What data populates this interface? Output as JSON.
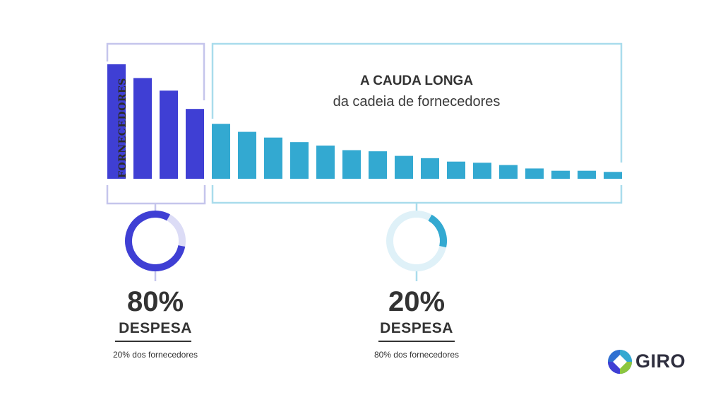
{
  "chart_data": {
    "type": "bar",
    "ylabel": "FORNECEDORES",
    "values": [
      100,
      88,
      77,
      61,
      48,
      41,
      36,
      32,
      29,
      25,
      24,
      20,
      18,
      15,
      14,
      12,
      9,
      7,
      7,
      6
    ],
    "head_count": 4,
    "colors": {
      "head": "#3f3fd4",
      "tail": "#33a9d1"
    }
  },
  "callout": {
    "title": "A CAUDA LONGA",
    "subtitle": "da cadeia de fornecedores"
  },
  "stats": [
    {
      "percent": "80%",
      "label": "DESPESA",
      "note": "20% dos fornecedores",
      "fraction": 0.8,
      "color": "#3f3fd4",
      "track": "#dcdcf6"
    },
    {
      "percent": "20%",
      "label": "DESPESA",
      "note": "80% dos fornecedores",
      "fraction": 0.2,
      "color": "#33a9d1",
      "track": "#dff1f8"
    }
  ],
  "brand": {
    "name": "GIRO"
  },
  "colors": {
    "head_bracket": "#c5c5ec",
    "tail_bracket": "#a9dcec"
  }
}
